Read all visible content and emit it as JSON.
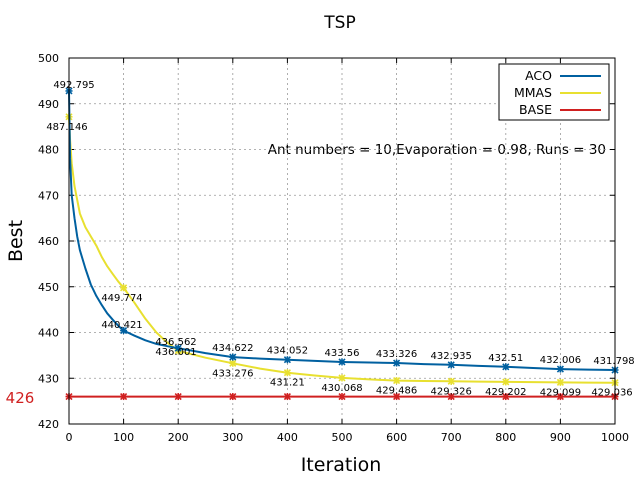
{
  "chart_data": {
    "type": "line",
    "title": "TSP",
    "xlabel": "Iteration",
    "ylabel": "Best",
    "xlim": [
      0,
      1000
    ],
    "ylim": [
      420,
      500
    ],
    "xticks": [
      0,
      100,
      200,
      300,
      400,
      500,
      600,
      700,
      800,
      900,
      1000
    ],
    "yticks": [
      420,
      430,
      440,
      450,
      460,
      470,
      480,
      490,
      500
    ],
    "grid": true,
    "legend_position": "top-right",
    "annotation": "Ant numbers = 10,Evaporation = 0.98,  Runs = 30",
    "base_label": "426",
    "series": [
      {
        "name": "ACO",
        "color": "#0060a0",
        "marker_x": [
          0,
          100,
          200,
          300,
          400,
          500,
          600,
          700,
          800,
          900,
          1000
        ],
        "marker_y": [
          492.795,
          440.421,
          436.562,
          434.622,
          434.052,
          433.56,
          433.326,
          432.935,
          432.51,
          432.006,
          431.798
        ],
        "labels": [
          "492.795",
          "440.421",
          "436.562",
          "434.622",
          "434.052",
          "433.56",
          "433.326",
          "432.935",
          "432.51",
          "432.006",
          "431.798"
        ],
        "curve_x": [
          0,
          2,
          5,
          10,
          15,
          20,
          30,
          40,
          50,
          60,
          70,
          80,
          90,
          100,
          120,
          140,
          160,
          180,
          200,
          250,
          300,
          350,
          400,
          450,
          500,
          550,
          600,
          650,
          700,
          750,
          800,
          850,
          900,
          950,
          1000
        ],
        "curve_y": [
          492.795,
          478,
          470,
          465,
          461,
          458,
          454,
          450.5,
          448,
          446,
          444.2,
          442.8,
          441.5,
          440.421,
          439.3,
          438.3,
          437.5,
          437,
          436.562,
          435.5,
          434.622,
          434.3,
          434.052,
          433.8,
          433.56,
          433.45,
          433.326,
          433.1,
          432.935,
          432.7,
          432.51,
          432.25,
          432.006,
          431.9,
          431.798
        ]
      },
      {
        "name": "MMAS",
        "color": "#e8e030",
        "marker_x": [
          0,
          100,
          200,
          300,
          400,
          500,
          600,
          700,
          800,
          900,
          1000
        ],
        "marker_y": [
          487.146,
          449.774,
          436.001,
          433.276,
          431.21,
          430.068,
          429.486,
          429.326,
          429.202,
          429.099,
          429.036
        ],
        "labels": [
          "487.146",
          "449.774",
          "436.001",
          "433.276",
          "431.21",
          "430.068",
          "429.486",
          "429.326",
          "429.202",
          "429.099",
          "429.036"
        ],
        "curve_x": [
          0,
          2,
          5,
          10,
          15,
          20,
          30,
          40,
          50,
          60,
          70,
          80,
          90,
          100,
          120,
          140,
          160,
          180,
          200,
          250,
          300,
          350,
          400,
          450,
          500,
          550,
          600,
          650,
          700,
          750,
          800,
          850,
          900,
          950,
          1000
        ],
        "curve_y": [
          487.146,
          482,
          477,
          472,
          469,
          466,
          463,
          461,
          459,
          456.5,
          454.5,
          452.8,
          451.2,
          449.774,
          446.5,
          443,
          440,
          437.8,
          436.001,
          434.5,
          433.276,
          432.1,
          431.21,
          430.6,
          430.068,
          429.75,
          429.486,
          429.4,
          429.326,
          429.26,
          429.202,
          429.15,
          429.099,
          429.06,
          429.036
        ]
      },
      {
        "name": "BASE",
        "color": "#d02020",
        "marker_x": [
          0,
          100,
          200,
          300,
          400,
          500,
          600,
          700,
          800,
          900,
          1000
        ],
        "marker_y": [
          426,
          426,
          426,
          426,
          426,
          426,
          426,
          426,
          426,
          426,
          426
        ],
        "curve_x": [
          0,
          1000
        ],
        "curve_y": [
          426,
          426
        ]
      }
    ]
  }
}
